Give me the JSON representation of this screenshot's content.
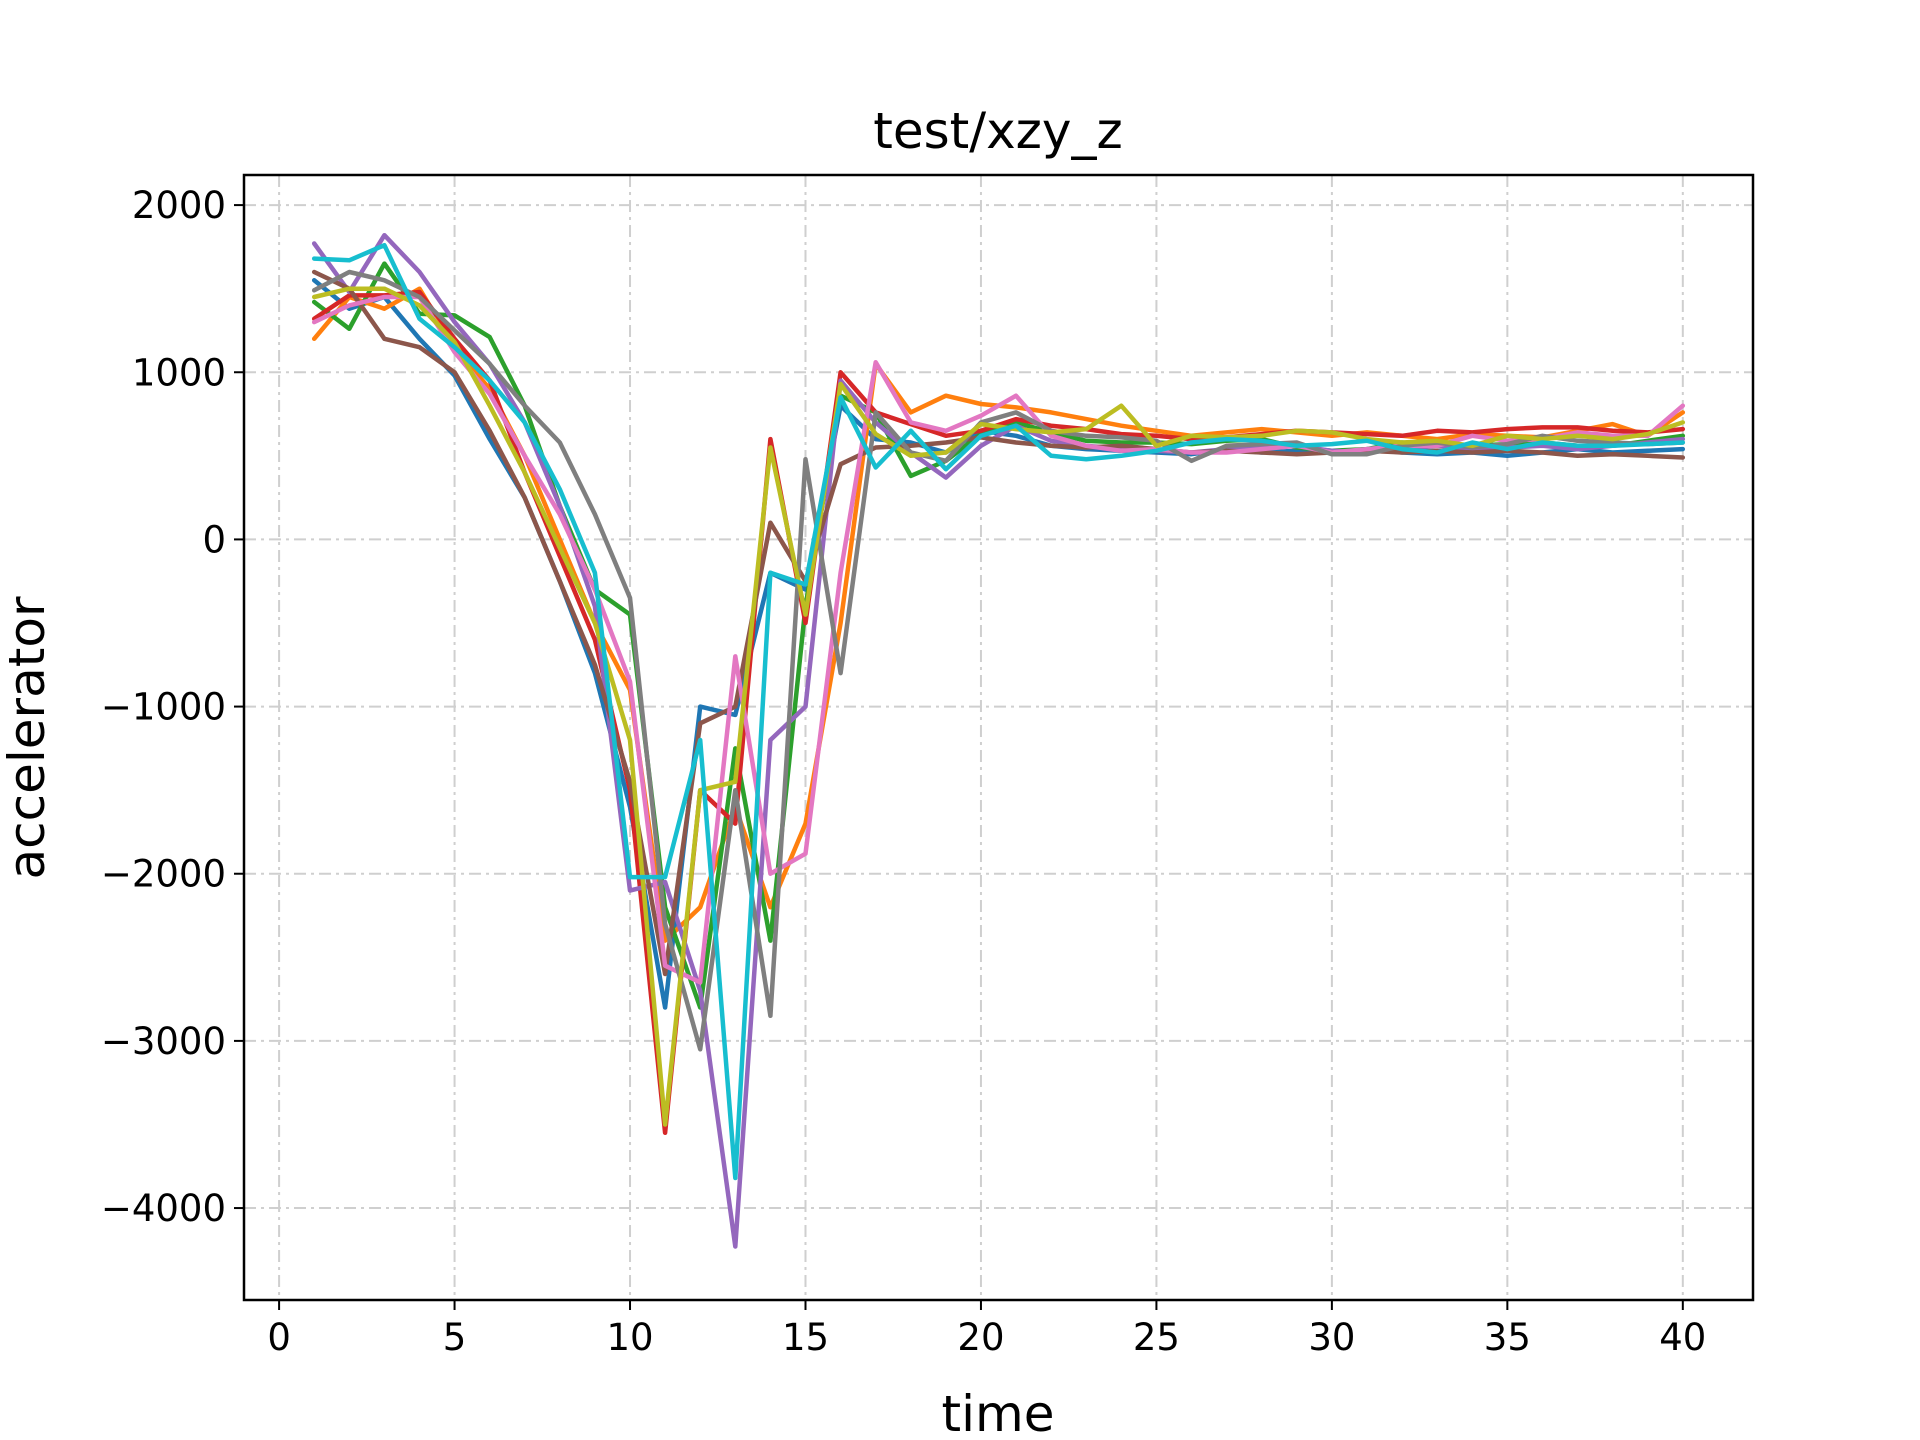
{
  "chart_data": {
    "type": "line",
    "title": "test/xzy_z",
    "xlabel": "time",
    "ylabel": "accelerator",
    "xlim": [
      -1,
      42
    ],
    "ylim": [
      -4550,
      2180
    ],
    "xticks": [
      0,
      5,
      10,
      15,
      20,
      25,
      30,
      35,
      40
    ],
    "yticks": [
      2000,
      1000,
      0,
      -1000,
      -2000,
      -3000,
      -4000
    ],
    "ytick_labels": [
      "2000",
      "1000",
      "0",
      "−1000",
      "−2000",
      "−3000",
      "−4000"
    ],
    "grid": true,
    "legend": "none",
    "x": [
      1,
      2,
      3,
      4,
      5,
      6,
      7,
      8,
      9,
      10,
      11,
      12,
      13,
      14,
      15,
      16,
      17,
      18,
      19,
      20,
      21,
      22,
      23,
      24,
      25,
      26,
      27,
      28,
      29,
      30,
      31,
      32,
      33,
      34,
      35,
      36,
      37,
      38,
      39,
      40
    ],
    "series": [
      {
        "color": "#1f77b4",
        "values": [
          1550,
          1380,
          1450,
          1200,
          980,
          600,
          250,
          -250,
          -800,
          -1600,
          -2800,
          -1000,
          -1050,
          -200,
          -300,
          800,
          600,
          580,
          520,
          650,
          620,
          560,
          540,
          530,
          520,
          510,
          540,
          520,
          530,
          520,
          540,
          520,
          510,
          520,
          500,
          520,
          540,
          520,
          530,
          540
        ]
      },
      {
        "color": "#ff7f0e",
        "values": [
          1200,
          1450,
          1380,
          1500,
          1150,
          900,
          500,
          0,
          -500,
          -900,
          -2400,
          -2200,
          -1600,
          -2200,
          -1700,
          -500,
          1050,
          760,
          860,
          810,
          790,
          760,
          720,
          680,
          650,
          620,
          640,
          660,
          640,
          620,
          640,
          620,
          600,
          630,
          620,
          610,
          650,
          690,
          620,
          760
        ]
      },
      {
        "color": "#2ca02c",
        "values": [
          1420,
          1260,
          1650,
          1350,
          1340,
          1210,
          800,
          200,
          -300,
          -450,
          -2200,
          -2800,
          -1250,
          -2400,
          -400,
          860,
          760,
          380,
          470,
          630,
          700,
          640,
          590,
          580,
          580,
          570,
          590,
          600,
          550,
          530,
          540,
          580,
          560,
          560,
          570,
          580,
          560,
          560,
          590,
          620
        ]
      },
      {
        "color": "#d62728",
        "values": [
          1320,
          1460,
          1460,
          1480,
          1200,
          950,
          400,
          -100,
          -600,
          -1500,
          -3550,
          -1500,
          -1700,
          600,
          -500,
          1000,
          760,
          690,
          620,
          650,
          720,
          680,
          660,
          630,
          620,
          600,
          610,
          630,
          650,
          640,
          630,
          620,
          650,
          640,
          660,
          670,
          670,
          650,
          640,
          660
        ]
      },
      {
        "color": "#9467bd",
        "values": [
          1770,
          1480,
          1820,
          1600,
          1300,
          1050,
          700,
          200,
          -400,
          -2100,
          -2050,
          -2700,
          -4230,
          -1200,
          -1000,
          950,
          700,
          520,
          370,
          560,
          680,
          590,
          560,
          540,
          530,
          520,
          540,
          550,
          560,
          530,
          520,
          540,
          560,
          540,
          550,
          560,
          540,
          560,
          580,
          600
        ]
      },
      {
        "color": "#8c564b",
        "values": [
          1600,
          1500,
          1200,
          1150,
          1000,
          650,
          250,
          -250,
          -750,
          -1450,
          -2600,
          -1100,
          -1000,
          100,
          -250,
          450,
          550,
          560,
          580,
          610,
          580,
          560,
          550,
          560,
          540,
          520,
          530,
          520,
          510,
          520,
          530,
          520,
          530,
          520,
          530,
          520,
          500,
          510,
          500,
          490
        ]
      },
      {
        "color": "#e377c2",
        "values": [
          1300,
          1400,
          1450,
          1450,
          1120,
          870,
          500,
          150,
          -300,
          -850,
          -2550,
          -2650,
          -700,
          -2000,
          -1880,
          -200,
          1060,
          700,
          650,
          740,
          860,
          620,
          560,
          530,
          540,
          520,
          520,
          540,
          560,
          520,
          540,
          560,
          560,
          620,
          590,
          600,
          640,
          620,
          620,
          800
        ]
      },
      {
        "color": "#7f7f7f",
        "values": [
          1490,
          1600,
          1550,
          1450,
          1250,
          1050,
          800,
          580,
          150,
          -350,
          -2300,
          -3050,
          -1500,
          -2850,
          480,
          -800,
          760,
          520,
          470,
          700,
          760,
          650,
          620,
          610,
          590,
          470,
          560,
          570,
          580,
          510,
          510,
          560,
          580,
          550,
          570,
          620,
          590,
          580,
          570,
          580
        ]
      },
      {
        "color": "#bcbd22",
        "values": [
          1450,
          1500,
          1500,
          1400,
          1180,
          800,
          400,
          -50,
          -500,
          -1200,
          -3500,
          -1500,
          -1450,
          550,
          -450,
          930,
          630,
          500,
          520,
          690,
          660,
          640,
          660,
          800,
          560,
          620,
          610,
          620,
          650,
          640,
          600,
          580,
          590,
          560,
          620,
          600,
          620,
          600,
          630,
          700
        ]
      },
      {
        "color": "#17becf",
        "values": [
          1680,
          1670,
          1760,
          1320,
          1150,
          950,
          700,
          300,
          -200,
          -2020,
          -2020,
          -1200,
          -3820,
          -200,
          -270,
          850,
          430,
          650,
          420,
          620,
          680,
          500,
          480,
          500,
          530,
          580,
          600,
          590,
          560,
          570,
          590,
          540,
          520,
          580,
          540,
          580,
          560,
          560,
          570,
          580
        ]
      }
    ]
  }
}
